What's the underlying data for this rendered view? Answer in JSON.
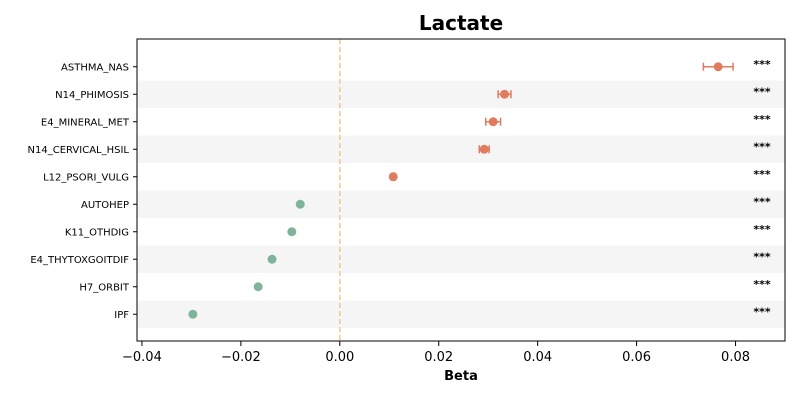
{
  "chart_data": {
    "type": "scatter",
    "subtype": "forest-plot",
    "title": "Lactate",
    "xlabel": "Beta",
    "ylabel": "",
    "xlim": [
      -0.041,
      0.09
    ],
    "xticks": [
      -0.04,
      -0.02,
      0.0,
      0.02,
      0.04,
      0.06,
      0.08
    ],
    "xtick_labels": [
      "−0.04",
      "−0.02",
      "0.00",
      "0.02",
      "0.04",
      "0.06",
      "0.08"
    ],
    "reference_line": 0.0,
    "colors": {
      "positive": "#E07B5F",
      "negative": "#7FB39A",
      "reference": "#F5C88A",
      "stripe": "#F5F5F5"
    },
    "rows": [
      {
        "label": "ASTHMA_NAS",
        "beta": 0.0765,
        "ci_low": 0.0735,
        "ci_high": 0.0795,
        "sig": "***"
      },
      {
        "label": "N14_PHIMOSIS",
        "beta": 0.0333,
        "ci_low": 0.032,
        "ci_high": 0.0346,
        "sig": "***"
      },
      {
        "label": "E4_MINERAL_MET",
        "beta": 0.031,
        "ci_low": 0.0295,
        "ci_high": 0.0325,
        "sig": "***"
      },
      {
        "label": "N14_CERVICAL_HSIL",
        "beta": 0.0292,
        "ci_low": 0.0282,
        "ci_high": 0.0302,
        "sig": "***"
      },
      {
        "label": "L12_PSORI_VULG",
        "beta": 0.0108,
        "ci_low": 0.0104,
        "ci_high": 0.0112,
        "sig": "***"
      },
      {
        "label": "AUTOHEP",
        "beta": -0.008,
        "ci_low": -0.0082,
        "ci_high": -0.0078,
        "sig": "***"
      },
      {
        "label": "K11_OTHDIG",
        "beta": -0.0097,
        "ci_low": -0.0099,
        "ci_high": -0.0095,
        "sig": "***"
      },
      {
        "label": "E4_THYTOXGOITDIF",
        "beta": -0.0137,
        "ci_low": -0.0139,
        "ci_high": -0.0135,
        "sig": "***"
      },
      {
        "label": "H7_ORBIT",
        "beta": -0.0165,
        "ci_low": -0.0167,
        "ci_high": -0.0163,
        "sig": "***"
      },
      {
        "label": "IPF",
        "beta": -0.0297,
        "ci_low": -0.0299,
        "ci_high": -0.0295,
        "sig": "***"
      }
    ]
  }
}
